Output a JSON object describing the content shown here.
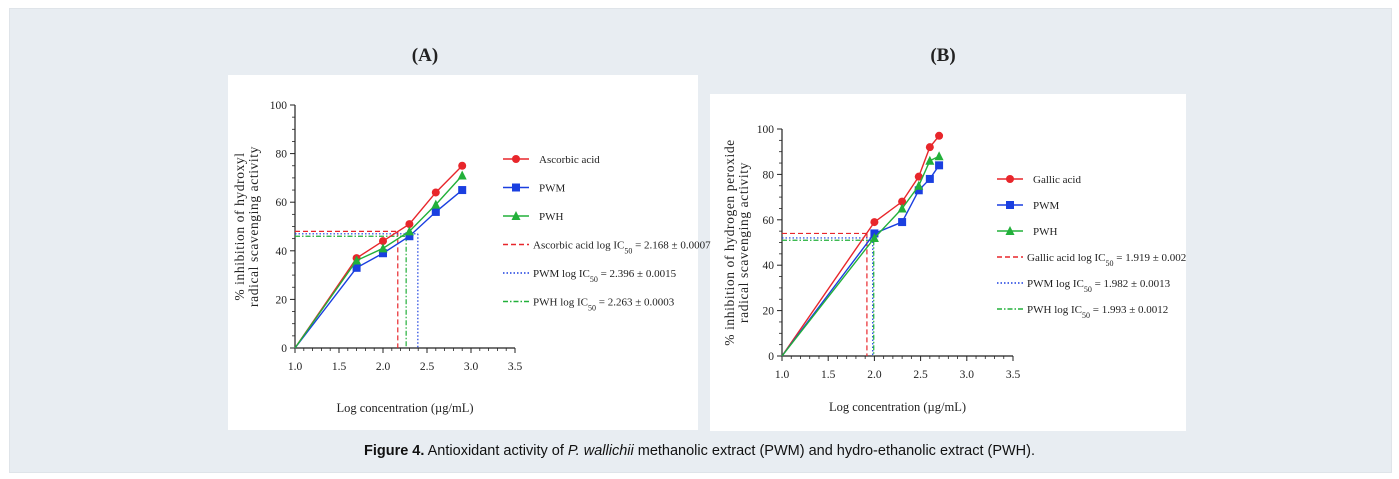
{
  "figure": {
    "caption_label": "Figure 4.",
    "caption_pre": "Antioxidant activity of",
    "caption_italic": "P. wallichii",
    "caption_post": "methanolic extract (PWM) and hydro-ethanolic extract (PWH)."
  },
  "colors": {
    "red": "#e8262b",
    "blue": "#1a3fe0",
    "green": "#22b03a"
  },
  "chart_data": [
    {
      "panel": "(A)",
      "type": "line",
      "xlabel": "Log concentration (µg/mL)",
      "ylabel_lines": [
        "% inhibition of hydroxyl",
        "radical scavenging activity"
      ],
      "xlim": [
        1.0,
        3.5
      ],
      "ylim": [
        0,
        100
      ],
      "xticks": [
        "1.0",
        "1.5",
        "2.0",
        "2.5",
        "3.0",
        "3.5"
      ],
      "yticks": [
        "0",
        "20",
        "40",
        "60",
        "80",
        "100"
      ],
      "series": [
        {
          "name": "Ascorbic acid",
          "color": "red",
          "marker": "circle",
          "x": [
            1.0,
            1.7,
            2.0,
            2.3,
            2.6,
            2.9
          ],
          "y": [
            0,
            37,
            44,
            51,
            64,
            75
          ]
        },
        {
          "name": "PWM",
          "color": "blue",
          "marker": "square",
          "x": [
            1.0,
            1.7,
            2.0,
            2.3,
            2.6,
            2.9
          ],
          "y": [
            0,
            33,
            39,
            46,
            56,
            65
          ]
        },
        {
          "name": "PWH",
          "color": "green",
          "marker": "triangle",
          "x": [
            1.0,
            1.7,
            2.0,
            2.3,
            2.6,
            2.9
          ],
          "y": [
            0,
            36,
            41,
            48,
            59,
            71
          ]
        }
      ],
      "ic50": [
        {
          "name": "Ascorbic acid log IC",
          "sub": "50",
          "value": " = 2.168 ± 0.0007",
          "color": "red",
          "dash": "5,3",
          "x": 2.168,
          "y": 48
        },
        {
          "name": "PWM log IC",
          "sub": "50",
          "value": " = 2.396 ± 0.0015",
          "color": "blue",
          "dash": "1.5,2",
          "x": 2.396,
          "y": 47
        },
        {
          "name": "PWH log IC",
          "sub": "50",
          "value": " = 2.263 ± 0.0003",
          "color": "green",
          "dash": "5,2,1.5,2",
          "x": 2.263,
          "y": 46
        }
      ]
    },
    {
      "panel": "(B)",
      "type": "line",
      "xlabel": "Log concentration (µg/mL)",
      "ylabel_lines": [
        "% inhibition of hydrogen peroxide",
        "radical scavenging activity"
      ],
      "xlim": [
        1.0,
        3.5
      ],
      "ylim": [
        0,
        100
      ],
      "xticks": [
        "1.0",
        "1.5",
        "2.0",
        "2.5",
        "3.0",
        "3.5"
      ],
      "yticks": [
        "0",
        "20",
        "40",
        "60",
        "80",
        "100"
      ],
      "series": [
        {
          "name": "Gallic acid",
          "color": "red",
          "marker": "circle",
          "x": [
            1.0,
            2.0,
            2.3,
            2.48,
            2.6,
            2.7
          ],
          "y": [
            0,
            59,
            68,
            79,
            92,
            97
          ]
        },
        {
          "name": "PWM",
          "color": "blue",
          "marker": "square",
          "x": [
            1.0,
            2.0,
            2.3,
            2.48,
            2.6,
            2.7
          ],
          "y": [
            0,
            54,
            59,
            73,
            78,
            84
          ]
        },
        {
          "name": "PWH",
          "color": "green",
          "marker": "triangle",
          "x": [
            1.0,
            2.0,
            2.3,
            2.48,
            2.6,
            2.7
          ],
          "y": [
            0,
            52,
            65,
            75,
            86,
            88
          ]
        }
      ],
      "ic50": [
        {
          "name": "Gallic acid log IC",
          "sub": "50",
          "value": " = 1.919 ± 0.002",
          "color": "red",
          "dash": "5,3",
          "x": 1.919,
          "y": 54
        },
        {
          "name": "PWM log IC",
          "sub": "50",
          "value": " = 1.982 ± 0.0013",
          "color": "blue",
          "dash": "1.5,2",
          "x": 1.982,
          "y": 52
        },
        {
          "name": "PWH log IC",
          "sub": "50",
          "value": " = 1.993 ± 0.0012",
          "color": "green",
          "dash": "5,2,1.5,2",
          "x": 1.993,
          "y": 51
        }
      ]
    }
  ]
}
